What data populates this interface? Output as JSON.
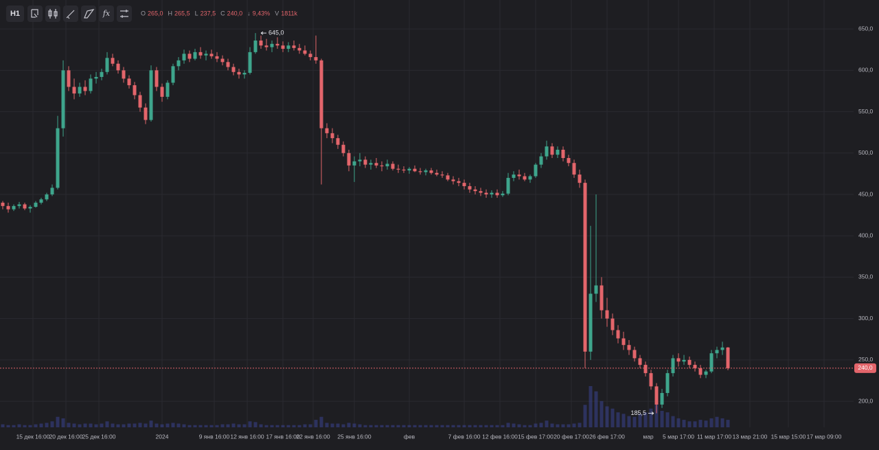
{
  "chart_data": {
    "type": "candlestick",
    "toolbar": {
      "interval": "H1",
      "indicator_button": "fx"
    },
    "ohlc_legend": [
      {
        "name": "O",
        "text": "265,0"
      },
      {
        "name": "H",
        "text": "265,5"
      },
      {
        "name": "L",
        "text": "237,5"
      },
      {
        "name": "C",
        "text": "240,0"
      },
      {
        "name": "↓",
        "text": "9,43%"
      },
      {
        "name": "V",
        "text": "1811k"
      }
    ],
    "up_color": "#3ea58c",
    "down_color": "#e3656b",
    "volume_color": "#3a4490",
    "grid": true,
    "xlim": [
      0,
      155
    ],
    "ylim": [
      168.5,
      685
    ],
    "yticks": [
      {
        "value": 200,
        "label": "200,0"
      },
      {
        "value": 250,
        "label": "250,0"
      },
      {
        "value": 300,
        "label": "300,0"
      },
      {
        "value": 350,
        "label": "350,0"
      },
      {
        "value": 400,
        "label": "400,0"
      },
      {
        "value": 450,
        "label": "450,0"
      },
      {
        "value": 500,
        "label": "500,0"
      },
      {
        "value": 550,
        "label": "550,0"
      },
      {
        "value": 600,
        "label": "600,0"
      },
      {
        "value": 650,
        "label": "650,0"
      }
    ],
    "xticks": [
      {
        "value": 6,
        "label": "15 дек 16:00"
      },
      {
        "value": 12,
        "label": "20 дек 16:00"
      },
      {
        "value": 18,
        "label": "25 дек 16:00"
      },
      {
        "value": 29.5,
        "label": "2024"
      },
      {
        "value": 39,
        "label": "9 янв 16:00"
      },
      {
        "value": 45,
        "label": "12 янв 16:00"
      },
      {
        "value": 51.5,
        "label": "17 янв 16:00"
      },
      {
        "value": 57,
        "label": "22 янв 16:00"
      },
      {
        "value": 64.5,
        "label": "25 янв 16:00"
      },
      {
        "value": 74.5,
        "label": "фев"
      },
      {
        "value": 84.5,
        "label": "7 фев 16:00"
      },
      {
        "value": 91,
        "label": "12 фев 16:00"
      },
      {
        "value": 97.5,
        "label": "15 фев 17:00"
      },
      {
        "value": 104,
        "label": "20 фев 17:00"
      },
      {
        "value": 110.5,
        "label": "26 фев 17:00"
      },
      {
        "value": 118,
        "label": "мар"
      },
      {
        "value": 123.5,
        "label": "5 мар 17:00"
      },
      {
        "value": 130,
        "label": "11 мар 17:00"
      },
      {
        "value": 136.5,
        "label": "13 мар 21:00"
      },
      {
        "value": 143.5,
        "label": "15 мар 15:00"
      },
      {
        "value": 150,
        "label": "17 мар 09:00"
      }
    ],
    "max_marker": {
      "value": 645,
      "label": "645,0"
    },
    "min_marker": {
      "value": 185.5,
      "label": "185,5"
    },
    "last_price": {
      "value": 240,
      "label": "240,0"
    },
    "ohlc": [
      [
        440,
        442,
        432,
        436
      ],
      [
        436,
        440,
        428,
        432
      ],
      [
        432,
        438,
        430,
        436
      ],
      [
        436,
        441,
        433,
        438
      ],
      [
        438,
        440,
        431,
        433
      ],
      [
        433,
        437,
        428,
        435
      ],
      [
        435,
        442,
        434,
        440
      ],
      [
        440,
        446,
        438,
        444
      ],
      [
        444,
        452,
        442,
        450
      ],
      [
        450,
        462,
        448,
        458
      ],
      [
        458,
        545,
        456,
        530
      ],
      [
        530,
        612,
        520,
        600
      ],
      [
        600,
        605,
        575,
        580
      ],
      [
        580,
        590,
        565,
        572
      ],
      [
        572,
        585,
        568,
        580
      ],
      [
        580,
        588,
        570,
        575
      ],
      [
        575,
        595,
        572,
        590
      ],
      [
        590,
        598,
        584,
        592
      ],
      [
        592,
        602,
        588,
        598
      ],
      [
        598,
        622,
        595,
        615
      ],
      [
        615,
        620,
        605,
        608
      ],
      [
        608,
        612,
        596,
        600
      ],
      [
        600,
        604,
        585,
        590
      ],
      [
        590,
        594,
        578,
        582
      ],
      [
        582,
        586,
        565,
        570
      ],
      [
        570,
        574,
        550,
        555
      ],
      [
        555,
        560,
        535,
        540
      ],
      [
        540,
        606,
        538,
        600
      ],
      [
        600,
        604,
        575,
        580
      ],
      [
        580,
        584,
        562,
        568
      ],
      [
        568,
        588,
        565,
        585
      ],
      [
        585,
        608,
        582,
        605
      ],
      [
        605,
        616,
        600,
        612
      ],
      [
        612,
        625,
        608,
        620
      ],
      [
        620,
        624,
        610,
        614
      ],
      [
        614,
        626,
        612,
        622
      ],
      [
        622,
        628,
        614,
        618
      ],
      [
        618,
        624,
        612,
        620
      ],
      [
        620,
        625,
        614,
        617
      ],
      [
        617,
        622,
        610,
        614
      ],
      [
        614,
        618,
        606,
        610
      ],
      [
        610,
        614,
        600,
        604
      ],
      [
        604,
        608,
        594,
        598
      ],
      [
        598,
        602,
        590,
        595
      ],
      [
        595,
        600,
        590,
        597
      ],
      [
        597,
        628,
        595,
        622
      ],
      [
        622,
        645,
        620,
        636
      ],
      [
        636,
        642,
        626,
        630
      ],
      [
        630,
        638,
        624,
        628
      ],
      [
        628,
        636,
        622,
        632
      ],
      [
        632,
        640,
        626,
        630
      ],
      [
        630,
        635,
        622,
        626
      ],
      [
        626,
        634,
        622,
        630
      ],
      [
        630,
        636,
        624,
        627
      ],
      [
        627,
        632,
        620,
        624
      ],
      [
        624,
        630,
        618,
        620
      ],
      [
        620,
        624,
        612,
        616
      ],
      [
        616,
        642,
        608,
        612
      ],
      [
        612,
        614,
        462,
        530
      ],
      [
        530,
        536,
        518,
        524
      ],
      [
        524,
        530,
        512,
        518
      ],
      [
        518,
        522,
        505,
        510
      ],
      [
        510,
        514,
        496,
        500
      ],
      [
        500,
        504,
        478,
        485
      ],
      [
        485,
        496,
        465,
        490
      ],
      [
        490,
        500,
        484,
        492
      ],
      [
        492,
        496,
        482,
        486
      ],
      [
        486,
        492,
        480,
        488
      ],
      [
        488,
        494,
        482,
        485
      ],
      [
        485,
        490,
        478,
        484
      ],
      [
        484,
        492,
        480,
        487
      ],
      [
        487,
        490,
        479,
        481
      ],
      [
        481,
        486,
        476,
        480
      ],
      [
        480,
        484,
        476,
        479
      ],
      [
        479,
        483,
        475,
        481
      ],
      [
        481,
        485,
        477,
        478
      ],
      [
        478,
        482,
        474,
        477
      ],
      [
        477,
        481,
        473,
        479
      ],
      [
        479,
        482,
        474,
        476
      ],
      [
        476,
        480,
        472,
        474
      ],
      [
        474,
        478,
        470,
        473
      ],
      [
        473,
        476,
        466,
        468
      ],
      [
        468,
        472,
        462,
        466
      ],
      [
        466,
        470,
        460,
        464
      ],
      [
        464,
        468,
        456,
        460
      ],
      [
        460,
        464,
        452,
        456
      ],
      [
        456,
        460,
        450,
        454
      ],
      [
        454,
        458,
        448,
        452
      ],
      [
        452,
        456,
        446,
        450
      ],
      [
        450,
        455,
        446,
        452
      ],
      [
        452,
        456,
        446,
        449
      ],
      [
        449,
        454,
        447,
        451
      ],
      [
        451,
        476,
        449,
        470
      ],
      [
        470,
        478,
        466,
        474
      ],
      [
        474,
        480,
        468,
        472
      ],
      [
        472,
        476,
        466,
        468
      ],
      [
        468,
        474,
        464,
        472
      ],
      [
        472,
        488,
        470,
        486
      ],
      [
        486,
        500,
        482,
        496
      ],
      [
        496,
        515,
        492,
        508
      ],
      [
        508,
        512,
        494,
        498
      ],
      [
        498,
        508,
        494,
        504
      ],
      [
        504,
        508,
        490,
        494
      ],
      [
        494,
        498,
        484,
        488
      ],
      [
        488,
        492,
        470,
        474
      ],
      [
        474,
        480,
        458,
        464
      ],
      [
        464,
        468,
        240,
        260
      ],
      [
        260,
        412,
        250,
        330
      ],
      [
        330,
        450,
        320,
        340
      ],
      [
        340,
        350,
        300,
        310
      ],
      [
        310,
        325,
        290,
        300
      ],
      [
        300,
        306,
        280,
        286
      ],
      [
        286,
        292,
        270,
        276
      ],
      [
        276,
        284,
        262,
        268
      ],
      [
        268,
        274,
        256,
        262
      ],
      [
        262,
        266,
        248,
        252
      ],
      [
        252,
        256,
        240,
        244
      ],
      [
        244,
        248,
        230,
        234
      ],
      [
        234,
        238,
        214,
        218
      ],
      [
        218,
        222,
        185.5,
        196
      ],
      [
        196,
        215,
        192,
        210
      ],
      [
        210,
        238,
        206,
        234
      ],
      [
        234,
        256,
        230,
        252
      ],
      [
        252,
        258,
        242,
        248
      ],
      [
        248,
        256,
        244,
        250
      ],
      [
        250,
        254,
        240,
        244
      ],
      [
        244,
        248,
        236,
        240
      ],
      [
        240,
        244,
        228,
        232
      ],
      [
        232,
        238,
        228,
        236
      ],
      [
        236,
        262,
        234,
        258
      ],
      [
        258,
        266,
        252,
        262
      ],
      [
        262,
        272,
        256,
        265
      ],
      [
        265,
        265.5,
        237.5,
        240
      ]
    ],
    "volume": [
      4,
      3,
      3,
      4,
      3,
      3,
      4,
      5,
      6,
      8,
      14,
      12,
      6,
      5,
      4,
      5,
      5,
      4,
      5,
      8,
      5,
      4,
      4,
      5,
      5,
      6,
      5,
      9,
      5,
      4,
      5,
      6,
      5,
      4,
      3,
      3,
      3,
      3,
      3,
      3,
      4,
      4,
      5,
      4,
      4,
      8,
      7,
      4,
      3,
      3,
      3,
      3,
      3,
      3,
      3,
      4,
      4,
      10,
      14,
      6,
      5,
      5,
      4,
      6,
      5,
      4,
      3,
      3,
      3,
      3,
      3,
      3,
      3,
      3,
      3,
      3,
      3,
      3,
      3,
      3,
      3,
      3,
      3,
      3,
      3,
      3,
      3,
      3,
      3,
      3,
      3,
      3,
      6,
      5,
      4,
      3,
      3,
      5,
      6,
      9,
      5,
      4,
      4,
      4,
      5,
      6,
      30,
      55,
      48,
      35,
      28,
      25,
      20,
      18,
      15,
      14,
      18,
      20,
      25,
      30,
      22,
      20,
      15,
      12,
      10,
      8,
      8,
      10,
      9,
      12,
      14,
      12,
      10
    ]
  }
}
